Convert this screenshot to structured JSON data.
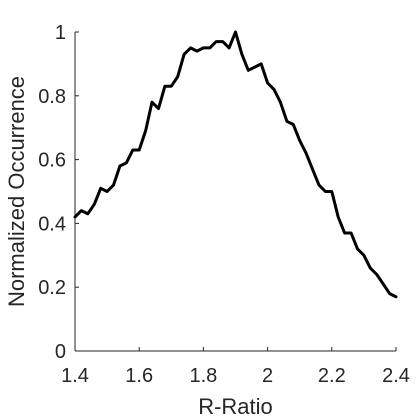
{
  "chart_data": {
    "type": "line",
    "title": "",
    "xlabel": "R-Ratio",
    "ylabel": "Normalized Occurrence",
    "xlim": [
      1.4,
      2.4
    ],
    "ylim": [
      0,
      1
    ],
    "xticks": [
      1.4,
      1.6,
      1.8,
      2.0,
      2.2,
      2.4
    ],
    "xtick_labels": [
      "1.4",
      "1.6",
      "1.8",
      "2",
      "2.2",
      "2.4"
    ],
    "yticks": [
      0,
      0.2,
      0.4,
      0.6,
      0.8,
      1.0
    ],
    "ytick_labels": [
      "0",
      "0.2",
      "0.4",
      "0.6",
      "0.8",
      "1"
    ],
    "grid": false,
    "series": [
      {
        "color": "#000000",
        "x": [
          1.4,
          1.42,
          1.44,
          1.46,
          1.48,
          1.5,
          1.52,
          1.54,
          1.56,
          1.58,
          1.6,
          1.62,
          1.64,
          1.66,
          1.68,
          1.7,
          1.72,
          1.74,
          1.76,
          1.78,
          1.8,
          1.82,
          1.84,
          1.86,
          1.88,
          1.9,
          1.92,
          1.94,
          1.96,
          1.98,
          2.0,
          2.02,
          2.04,
          2.06,
          2.08,
          2.1,
          2.12,
          2.14,
          2.16,
          2.18,
          2.2,
          2.22,
          2.24,
          2.26,
          2.28,
          2.3,
          2.32,
          2.34,
          2.36,
          2.38,
          2.4
        ],
        "y": [
          0.42,
          0.44,
          0.43,
          0.46,
          0.51,
          0.5,
          0.52,
          0.58,
          0.59,
          0.63,
          0.63,
          0.69,
          0.78,
          0.76,
          0.83,
          0.83,
          0.86,
          0.93,
          0.95,
          0.94,
          0.95,
          0.95,
          0.97,
          0.97,
          0.95,
          1.0,
          0.93,
          0.88,
          0.89,
          0.9,
          0.84,
          0.82,
          0.78,
          0.72,
          0.71,
          0.66,
          0.62,
          0.57,
          0.52,
          0.5,
          0.5,
          0.42,
          0.37,
          0.37,
          0.32,
          0.3,
          0.26,
          0.24,
          0.21,
          0.18,
          0.17
        ]
      }
    ]
  }
}
